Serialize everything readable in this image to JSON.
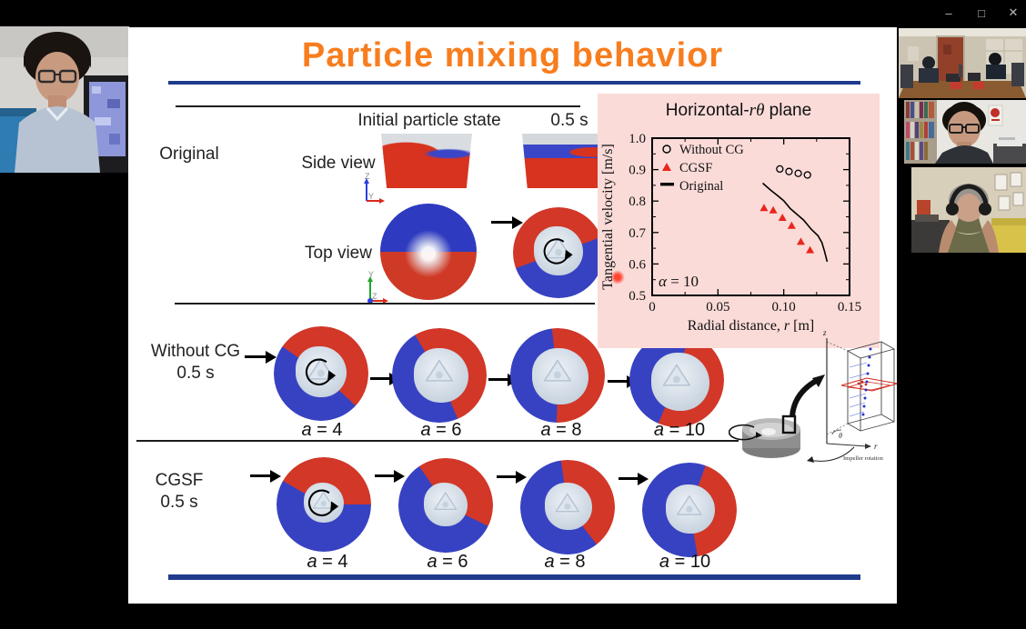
{
  "window": {
    "minimize": "–",
    "maximize": "□",
    "close": "✕"
  },
  "slide": {
    "title": "Particle mixing behavior",
    "header": {
      "initial": "Initial particle state",
      "time": "0.5 s"
    },
    "rows": {
      "original": {
        "label": "Original",
        "side": "Side view",
        "top": "Top view"
      },
      "without_cg": {
        "label": "Without CG",
        "time": "0.5 s",
        "cases": [
          "a = 4",
          "a = 6",
          "a = 8",
          "a = 10"
        ]
      },
      "cgsf": {
        "label": "CGSF",
        "time": "0.5 s",
        "cases": [
          "a = 4",
          "a = 6",
          "a = 8",
          "a = 10"
        ]
      }
    },
    "axes": {
      "side_up": "Z",
      "side_right": "Y",
      "top_up": "Y",
      "top_origin": "Z"
    },
    "schematic": {
      "z": "z",
      "theta": "θ",
      "r": "r",
      "caption": "Impeller rotation"
    }
  },
  "chart_data": {
    "type": "scatter",
    "title": "Horizontal-rθ plane",
    "title_parts": [
      "Horizontal-",
      "rθ",
      " plane"
    ],
    "xlabel": "Radial distance, r [m]",
    "xlabel_parts": [
      "Radial distance, ",
      "r",
      " [m]"
    ],
    "ylabel": "Tangential velocity [m/s]",
    "xlim": [
      0,
      0.15
    ],
    "ylim": [
      0.5,
      1.0
    ],
    "xticks": [
      0,
      0.05,
      0.1,
      0.15
    ],
    "xtick_labels": [
      "0",
      "0.05",
      "0.10",
      "0.15"
    ],
    "yticks": [
      0.5,
      0.6,
      0.7,
      0.8,
      0.9,
      1.0
    ],
    "ytick_labels": [
      "0.5",
      "0.6",
      "0.7",
      "0.8",
      "0.9",
      "1.0"
    ],
    "grid": false,
    "legend_position": "upper-left",
    "annotation": "α = 10",
    "annotation_parts": [
      "α",
      " = 10"
    ],
    "colors": {
      "background": "#fadbd8",
      "cgsf_red": "#e8261d",
      "axis": "#000000"
    },
    "series": [
      {
        "name": "Without CG",
        "marker": "circle",
        "color": "#000000",
        "points": [
          [
            0.097,
            0.902
          ],
          [
            0.104,
            0.894
          ],
          [
            0.111,
            0.888
          ],
          [
            0.118,
            0.883
          ]
        ]
      },
      {
        "name": "CGSF",
        "marker": "triangle",
        "color": "#e8261d",
        "points": [
          [
            0.085,
            0.778
          ],
          [
            0.092,
            0.771
          ],
          [
            0.099,
            0.747
          ],
          [
            0.106,
            0.722
          ],
          [
            0.113,
            0.671
          ],
          [
            0.12,
            0.644
          ]
        ]
      },
      {
        "name": "Original",
        "marker": "line",
        "color": "#000000",
        "points": [
          [
            0.084,
            0.857
          ],
          [
            0.09,
            0.835
          ],
          [
            0.096,
            0.815
          ],
          [
            0.1,
            0.801
          ],
          [
            0.105,
            0.776
          ],
          [
            0.11,
            0.758
          ],
          [
            0.115,
            0.74
          ],
          [
            0.121,
            0.71
          ],
          [
            0.126,
            0.69
          ],
          [
            0.129,
            0.668
          ],
          [
            0.131,
            0.64
          ],
          [
            0.133,
            0.607
          ]
        ]
      }
    ]
  }
}
